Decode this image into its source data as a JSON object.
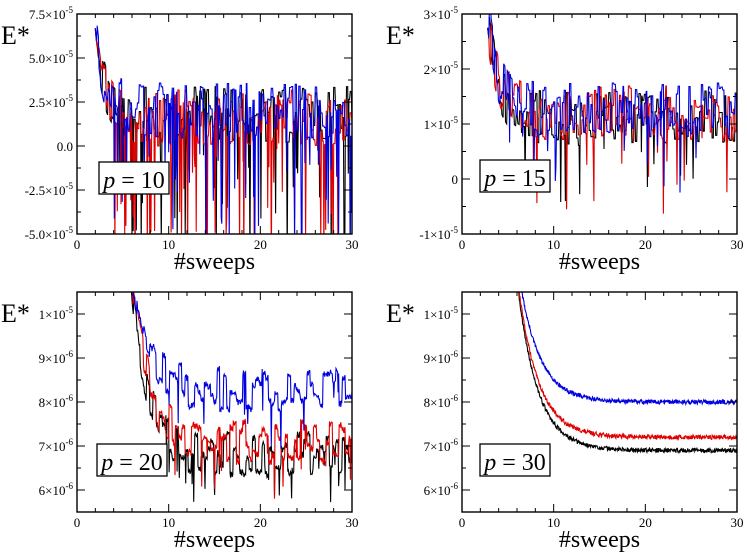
{
  "figure": {
    "description_hidden": ""
  },
  "chart_data": [
    {
      "type": "line",
      "panel": "p10",
      "xlabel": "#sweeps",
      "ylabel": "E*",
      "annotation": {
        "var": "p",
        "eq": " = ",
        "value": "10"
      },
      "xlim": [
        0,
        30
      ],
      "ylim": [
        -5e-05,
        7.5e-05
      ],
      "xticks": [
        {
          "v": 0,
          "label": "0"
        },
        {
          "v": 10,
          "label": "10"
        },
        {
          "v": 20,
          "label": "20"
        },
        {
          "v": 30,
          "label": "30"
        }
      ],
      "yticks": [
        {
          "v": -5e-05,
          "mant": "-5.0",
          "exp": "-5"
        },
        {
          "v": -2.5e-05,
          "mant": "-2.5",
          "exp": "-5"
        },
        {
          "v": 0.0,
          "mant": "0.0",
          "exp": ""
        },
        {
          "v": 2.5e-05,
          "mant": "2.5",
          "exp": "-5"
        },
        {
          "v": 5e-05,
          "mant": "5.0",
          "exp": "-5"
        },
        {
          "v": 7.5e-05,
          "mant": "7.5",
          "exp": "-5"
        }
      ],
      "model": {
        "x0": 2.0,
        "start": 7.5e-05,
        "tau": 0.9,
        "mode": "noisy",
        "amp": 1.6e-05,
        "dips": 0.1,
        "dipDepth": 6e-05,
        "n": 420
      },
      "series": [
        {
          "name": "black",
          "color": "#000000",
          "plateau": 1.8e-05,
          "seed": 11
        },
        {
          "name": "red",
          "color": "#e00000",
          "plateau": 1.6e-05,
          "seed": 23
        },
        {
          "name": "blue",
          "color": "#0000e0",
          "plateau": 2e-05,
          "seed": 37
        }
      ]
    },
    {
      "type": "line",
      "panel": "p15",
      "xlabel": "#sweeps",
      "ylabel": "E*",
      "annotation": {
        "var": "p",
        "eq": " = ",
        "value": "15"
      },
      "xlim": [
        0,
        30
      ],
      "ylim": [
        -1e-05,
        3e-05
      ],
      "xticks": [
        {
          "v": 0,
          "label": "0"
        },
        {
          "v": 10,
          "label": "10"
        },
        {
          "v": 20,
          "label": "20"
        },
        {
          "v": 30,
          "label": "30"
        }
      ],
      "yticks": [
        {
          "v": -1e-05,
          "mant": "-1",
          "exp": "-5"
        },
        {
          "v": 0.0,
          "mant": "0",
          "exp": ""
        },
        {
          "v": 1e-05,
          "mant": "1",
          "exp": "-5"
        },
        {
          "v": 2e-05,
          "mant": "2",
          "exp": "-5"
        },
        {
          "v": 3e-05,
          "mant": "3",
          "exp": "-5"
        }
      ],
      "model": {
        "x0": 2.8,
        "start": 3e-05,
        "tau": 1.2,
        "mode": "noisy",
        "amp": 5e-06,
        "dips": 0.04,
        "dipDepth": 1e-05,
        "n": 420
      },
      "series": [
        {
          "name": "black",
          "color": "#000000",
          "plateau": 1.1e-05,
          "seed": 5
        },
        {
          "name": "red",
          "color": "#e00000",
          "plateau": 1.2e-05,
          "seed": 19
        },
        {
          "name": "blue",
          "color": "#0000e0",
          "plateau": 1.25e-05,
          "seed": 41
        }
      ]
    },
    {
      "type": "line",
      "panel": "p20",
      "xlabel": "#sweeps",
      "ylabel": "E*",
      "annotation": {
        "var": "p",
        "eq": " = ",
        "value": "20"
      },
      "xlim": [
        0,
        30
      ],
      "ylim": [
        5.5e-06,
        1.05e-05
      ],
      "xticks": [
        {
          "v": 0,
          "label": "0"
        },
        {
          "v": 10,
          "label": "10"
        },
        {
          "v": 20,
          "label": "20"
        },
        {
          "v": 30,
          "label": "30"
        }
      ],
      "yticks": [
        {
          "v": 6e-06,
          "mant": "6",
          "exp": "-6"
        },
        {
          "v": 7e-06,
          "mant": "7",
          "exp": "-6"
        },
        {
          "v": 8e-06,
          "mant": "8",
          "exp": "-6"
        },
        {
          "v": 9e-06,
          "mant": "9",
          "exp": "-6"
        },
        {
          "v": 1e-05,
          "mant": "1",
          "exp": "-5"
        }
      ],
      "model": {
        "x0": 5.5,
        "start": 1.2e-05,
        "tau": 1.8,
        "mode": "step",
        "amp": 5e-07,
        "dips": 0.03,
        "dipDepth": 8e-07,
        "n": 420
      },
      "series": [
        {
          "name": "black",
          "color": "#000000",
          "plateau": 6.8e-06,
          "seed": 7
        },
        {
          "name": "red",
          "color": "#e00000",
          "plateau": 7.1e-06,
          "seed": 29
        },
        {
          "name": "blue",
          "color": "#0000e0",
          "plateau": 8.3e-06,
          "seed": 53
        }
      ]
    },
    {
      "type": "line",
      "panel": "p30",
      "xlabel": "#sweeps",
      "ylabel": "E*",
      "annotation": {
        "var": "p",
        "eq": " = ",
        "value": "30"
      },
      "xlim": [
        0,
        30
      ],
      "ylim": [
        5.5e-06,
        1.05e-05
      ],
      "xticks": [
        {
          "v": 0,
          "label": "0"
        },
        {
          "v": 10,
          "label": "10"
        },
        {
          "v": 20,
          "label": "20"
        },
        {
          "v": 30,
          "label": "30"
        }
      ],
      "yticks": [
        {
          "v": 6e-06,
          "mant": "6",
          "exp": "-6"
        },
        {
          "v": 7e-06,
          "mant": "7",
          "exp": "-6"
        },
        {
          "v": 8e-06,
          "mant": "8",
          "exp": "-6"
        },
        {
          "v": 9e-06,
          "mant": "9",
          "exp": "-6"
        },
        {
          "v": 1e-05,
          "mant": "1",
          "exp": "-5"
        }
      ],
      "model": {
        "x0": 5.0,
        "start": 1.3e-05,
        "tau": 2.2,
        "mode": "smooth",
        "amp": 5e-08,
        "dips": 0,
        "dipDepth": 0,
        "n": 600
      },
      "series": [
        {
          "name": "black",
          "color": "#000000",
          "plateau": 6.9e-06,
          "seed": 3
        },
        {
          "name": "red",
          "color": "#e00000",
          "plateau": 7.2e-06,
          "seed": 13
        },
        {
          "name": "blue",
          "color": "#0000e0",
          "plateau": 8e-06,
          "seed": 31
        }
      ]
    }
  ]
}
